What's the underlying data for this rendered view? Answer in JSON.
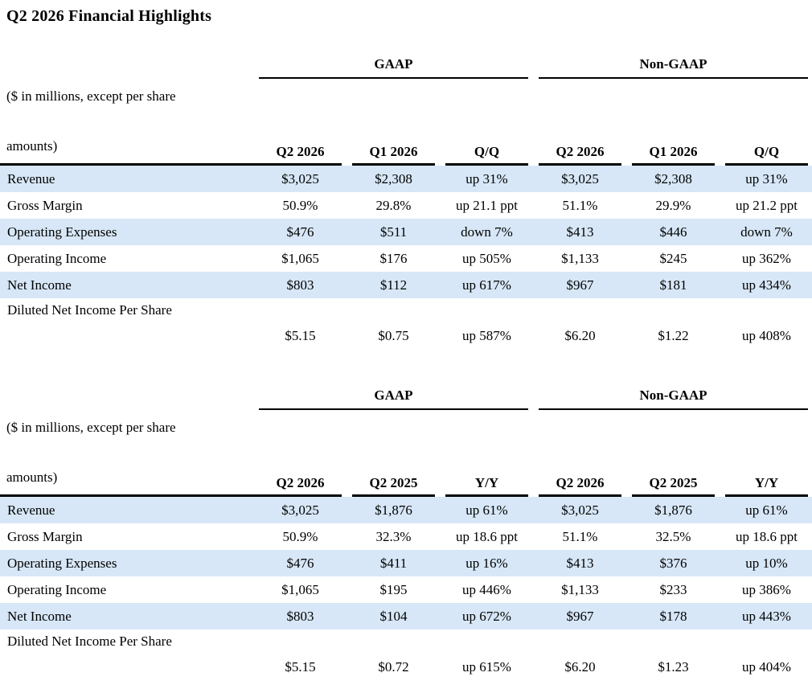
{
  "page": {
    "title": "Q2 2026 Financial Highlights"
  },
  "colors": {
    "row_shade": "#D7E7F7",
    "rule": "#000000",
    "text": "#000000",
    "background": "#FFFFFF"
  },
  "tables": [
    {
      "name": "quarter-over-quarter",
      "group_headers": [
        "GAAP",
        "Non-GAAP"
      ],
      "units_note_lines": [
        "($ in millions, except per share",
        "amounts)"
      ],
      "columns": [
        "Q2 2026",
        "Q1 2026",
        "Q/Q",
        "Q2 2026",
        "Q1 2026",
        "Q/Q"
      ],
      "rows": [
        {
          "label": "Revenue",
          "shaded": true,
          "two_line": false,
          "values": [
            "$3,025",
            "$2,308",
            "up 31%",
            "$3,025",
            "$2,308",
            "up 31%"
          ]
        },
        {
          "label": "Gross Margin",
          "shaded": false,
          "two_line": false,
          "values": [
            "50.9%",
            "29.8%",
            "up 21.1 ppt",
            "51.1%",
            "29.9%",
            "up 21.2 ppt"
          ]
        },
        {
          "label": "Operating Expenses",
          "shaded": true,
          "two_line": false,
          "values": [
            "$476",
            "$511",
            "down 7%",
            "$413",
            "$446",
            "down 7%"
          ]
        },
        {
          "label": "Operating Income",
          "shaded": false,
          "two_line": false,
          "values": [
            "$1,065",
            "$176",
            "up 505%",
            "$1,133",
            "$245",
            "up 362%"
          ]
        },
        {
          "label": "Net Income",
          "shaded": true,
          "two_line": false,
          "values": [
            "$803",
            "$112",
            "up 617%",
            "$967",
            "$181",
            "up 434%"
          ]
        },
        {
          "label": "Diluted Net Income Per Share",
          "shaded": false,
          "two_line": true,
          "values": [
            "$5.15",
            "$0.75",
            "up 587%",
            "$6.20",
            "$1.22",
            "up 408%"
          ]
        }
      ]
    },
    {
      "name": "year-over-year",
      "group_headers": [
        "GAAP",
        "Non-GAAP"
      ],
      "units_note_lines": [
        "($ in millions, except per share",
        "amounts)"
      ],
      "columns": [
        "Q2 2026",
        "Q2 2025",
        "Y/Y",
        "Q2 2026",
        "Q2 2025",
        "Y/Y"
      ],
      "rows": [
        {
          "label": "Revenue",
          "shaded": true,
          "two_line": false,
          "values": [
            "$3,025",
            "$1,876",
            "up 61%",
            "$3,025",
            "$1,876",
            "up 61%"
          ]
        },
        {
          "label": "Gross Margin",
          "shaded": false,
          "two_line": false,
          "values": [
            "50.9%",
            "32.3%",
            "up 18.6 ppt",
            "51.1%",
            "32.5%",
            "up 18.6 ppt"
          ]
        },
        {
          "label": "Operating Expenses",
          "shaded": true,
          "two_line": false,
          "values": [
            "$476",
            "$411",
            "up 16%",
            "$413",
            "$376",
            "up 10%"
          ]
        },
        {
          "label": "Operating Income",
          "shaded": false,
          "two_line": false,
          "values": [
            "$1,065",
            "$195",
            "up 446%",
            "$1,133",
            "$233",
            "up 386%"
          ]
        },
        {
          "label": "Net Income",
          "shaded": true,
          "two_line": false,
          "values": [
            "$803",
            "$104",
            "up 672%",
            "$967",
            "$178",
            "up 443%"
          ]
        },
        {
          "label": "Diluted Net Income Per Share",
          "shaded": false,
          "two_line": true,
          "values": [
            "$5.15",
            "$0.72",
            "up 615%",
            "$6.20",
            "$1.23",
            "up 404%"
          ]
        }
      ]
    }
  ]
}
